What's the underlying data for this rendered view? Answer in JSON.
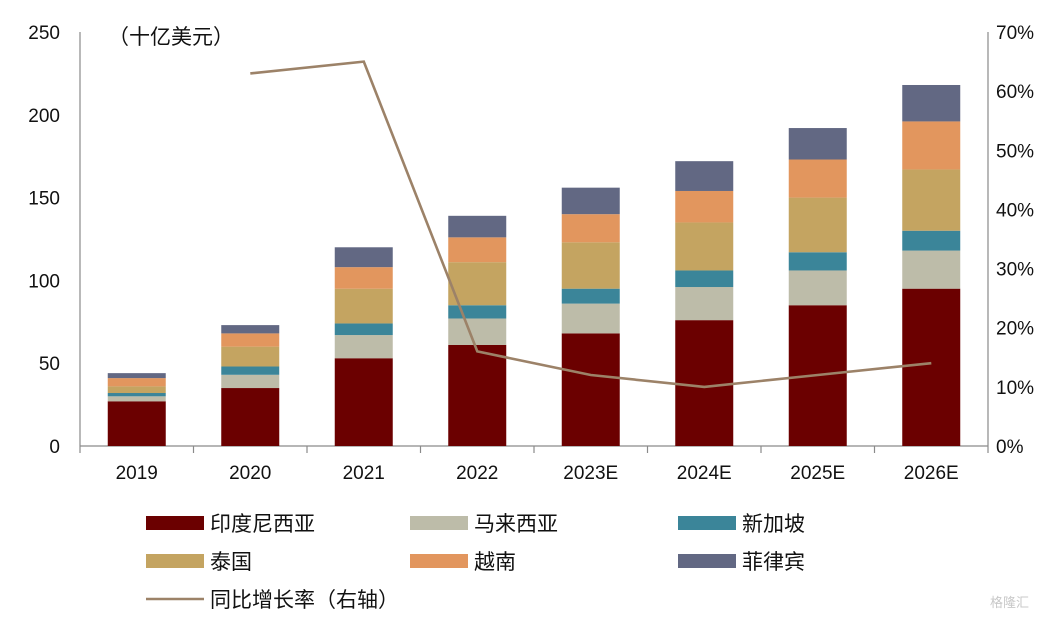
{
  "chart_data": {
    "type": "bar",
    "stacked": true,
    "unit_label": "（十亿美元）",
    "categories": [
      "2019",
      "2020",
      "2021",
      "2022",
      "2023E",
      "2024E",
      "2025E",
      "2026E"
    ],
    "series": [
      {
        "name": "印度尼西亚",
        "color": "#6b0000",
        "values": [
          27,
          35,
          53,
          61,
          68,
          76,
          85,
          95
        ]
      },
      {
        "name": "马来西亚",
        "color": "#bdbca9",
        "values": [
          3,
          8,
          14,
          16,
          18,
          20,
          21,
          23
        ]
      },
      {
        "name": "新加坡",
        "color": "#3b8599",
        "values": [
          2,
          5,
          7,
          8,
          9,
          10,
          11,
          12
        ]
      },
      {
        "name": "泰国",
        "color": "#c4a461",
        "values": [
          4,
          12,
          21,
          26,
          28,
          29,
          33,
          37
        ]
      },
      {
        "name": "越南",
        "color": "#e2965e",
        "values": [
          5,
          8,
          13,
          15,
          17,
          19,
          23,
          29
        ]
      },
      {
        "name": "菲律宾",
        "color": "#626883",
        "values": [
          3,
          5,
          12,
          13,
          16,
          18,
          19,
          22
        ]
      }
    ],
    "line": {
      "name": "同比增长率（右轴）",
      "color": "#9c8268",
      "values": [
        null,
        63,
        65,
        16,
        12,
        10,
        12,
        14
      ]
    },
    "yleft": {
      "min": 0,
      "max": 250,
      "ticks": [
        "0",
        "50",
        "100",
        "150",
        "200",
        "250"
      ]
    },
    "yright": {
      "min": 0,
      "max": 70,
      "ticks": [
        "0%",
        "10%",
        "20%",
        "30%",
        "40%",
        "50%",
        "60%",
        "70%"
      ]
    },
    "legend_position": "bottom",
    "grid": false
  },
  "watermark": "格隆汇"
}
